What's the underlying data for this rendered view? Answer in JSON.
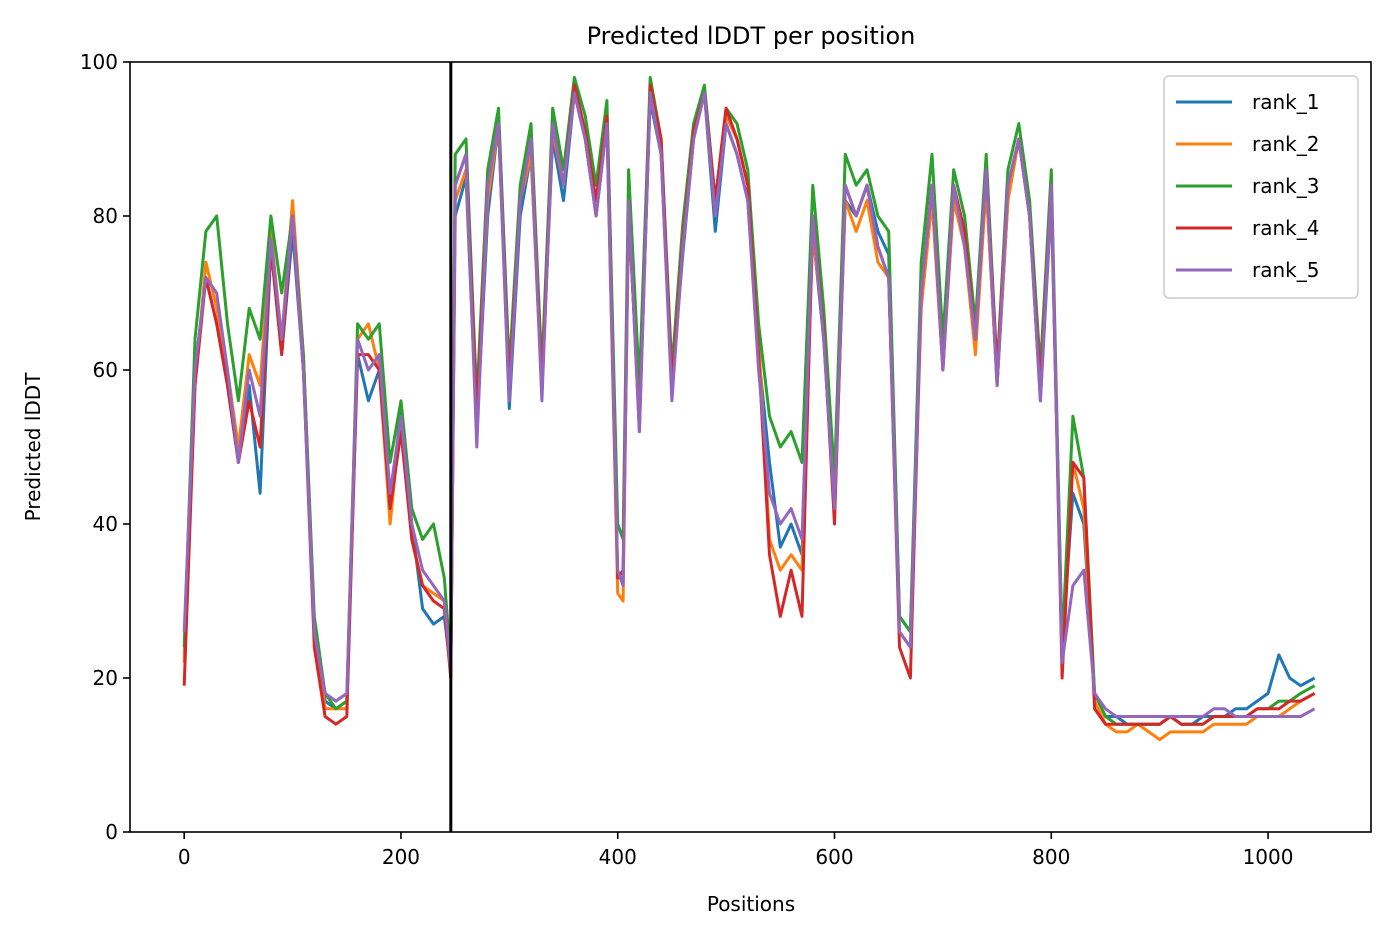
{
  "chart_data": {
    "type": "line",
    "title": "Predicted lDDT per position",
    "xlabel": "Positions",
    "ylabel": "Predicted lDDT",
    "xlim": [
      -50,
      1095
    ],
    "ylim": [
      0,
      100
    ],
    "xticks": [
      0,
      200,
      400,
      600,
      800,
      1000
    ],
    "yticks": [
      0,
      20,
      40,
      60,
      80,
      100
    ],
    "grid": false,
    "legend_position": "top-right",
    "vertical_marker": {
      "x": 246,
      "color": "#000000"
    },
    "x": [
      0,
      10,
      20,
      30,
      40,
      50,
      60,
      70,
      80,
      90,
      100,
      110,
      120,
      130,
      140,
      150,
      160,
      170,
      180,
      190,
      200,
      210,
      220,
      230,
      240,
      246,
      250,
      260,
      270,
      280,
      290,
      300,
      310,
      320,
      330,
      340,
      350,
      360,
      370,
      380,
      390,
      400,
      405,
      410,
      420,
      430,
      440,
      450,
      460,
      470,
      480,
      490,
      500,
      510,
      520,
      530,
      540,
      550,
      560,
      570,
      580,
      590,
      600,
      610,
      620,
      630,
      640,
      650,
      660,
      670,
      680,
      690,
      700,
      710,
      720,
      730,
      740,
      750,
      760,
      770,
      780,
      790,
      800,
      810,
      820,
      830,
      840,
      850,
      860,
      870,
      880,
      890,
      900,
      910,
      920,
      930,
      940,
      950,
      960,
      970,
      980,
      990,
      1000,
      1010,
      1020,
      1030,
      1043
    ],
    "series": [
      {
        "name": "rank_1",
        "color": "#1f77b4",
        "values": [
          23,
          60,
          72,
          66,
          58,
          48,
          58,
          44,
          76,
          62,
          78,
          60,
          27,
          17,
          16,
          17,
          62,
          56,
          60,
          42,
          55,
          40,
          29,
          27,
          28,
          21,
          80,
          85,
          52,
          80,
          92,
          55,
          80,
          88,
          58,
          90,
          82,
          96,
          90,
          80,
          92,
          33,
          33,
          80,
          55,
          95,
          88,
          58,
          75,
          90,
          96,
          78,
          92,
          88,
          82,
          62,
          48,
          37,
          40,
          36,
          78,
          64,
          42,
          82,
          80,
          84,
          78,
          75,
          28,
          26,
          70,
          84,
          62,
          84,
          76,
          64,
          84,
          58,
          82,
          90,
          80,
          56,
          82,
          24,
          44,
          40,
          18,
          15,
          15,
          14,
          14,
          14,
          14,
          15,
          14,
          14,
          15,
          15,
          15,
          16,
          16,
          17,
          18,
          23,
          20,
          19,
          20
        ]
      },
      {
        "name": "rank_2",
        "color": "#ff7f0e",
        "values": [
          22,
          58,
          74,
          68,
          60,
          50,
          62,
          58,
          78,
          64,
          82,
          62,
          26,
          16,
          16,
          16,
          64,
          66,
          60,
          40,
          54,
          38,
          32,
          31,
          30,
          20,
          82,
          86,
          54,
          82,
          92,
          57,
          82,
          88,
          57,
          91,
          84,
          96,
          90,
          80,
          92,
          31,
          30,
          81,
          54,
          96,
          88,
          58,
          76,
          90,
          96,
          80,
          93,
          90,
          84,
          64,
          38,
          34,
          36,
          34,
          78,
          65,
          44,
          82,
          78,
          82,
          74,
          72,
          26,
          24,
          68,
          82,
          60,
          82,
          76,
          62,
          84,
          58,
          82,
          90,
          80,
          58,
          83,
          23,
          48,
          42,
          17,
          14,
          13,
          13,
          14,
          13,
          12,
          13,
          13,
          13,
          13,
          14,
          14,
          14,
          14,
          15,
          15,
          15,
          16,
          17,
          18
        ]
      },
      {
        "name": "rank_3",
        "color": "#2ca02c",
        "values": [
          24,
          64,
          78,
          80,
          66,
          56,
          68,
          64,
          80,
          70,
          80,
          62,
          28,
          18,
          16,
          17,
          66,
          64,
          66,
          48,
          56,
          42,
          38,
          40,
          33,
          22,
          88,
          90,
          56,
          86,
          94,
          60,
          84,
          92,
          60,
          94,
          86,
          98,
          93,
          84,
          95,
          40,
          38,
          86,
          58,
          98,
          90,
          60,
          79,
          92,
          97,
          82,
          94,
          92,
          86,
          66,
          54,
          50,
          52,
          48,
          84,
          68,
          46,
          88,
          84,
          86,
          80,
          78,
          28,
          26,
          74,
          88,
          64,
          86,
          80,
          66,
          88,
          60,
          86,
          92,
          82,
          60,
          86,
          24,
          54,
          46,
          18,
          15,
          14,
          14,
          14,
          14,
          14,
          15,
          14,
          14,
          14,
          15,
          15,
          15,
          15,
          16,
          16,
          17,
          17,
          18,
          19
        ]
      },
      {
        "name": "rank_4",
        "color": "#d62728",
        "values": [
          19,
          58,
          72,
          66,
          58,
          48,
          56,
          50,
          76,
          62,
          80,
          60,
          24,
          15,
          14,
          15,
          62,
          62,
          60,
          42,
          52,
          38,
          32,
          30,
          29,
          20,
          84,
          88,
          54,
          84,
          92,
          58,
          82,
          90,
          58,
          92,
          84,
          97,
          91,
          82,
          93,
          33,
          34,
          82,
          52,
          97,
          90,
          58,
          77,
          91,
          96,
          82,
          94,
          90,
          84,
          62,
          36,
          28,
          34,
          28,
          80,
          65,
          40,
          84,
          80,
          84,
          76,
          72,
          24,
          20,
          70,
          84,
          60,
          84,
          78,
          64,
          86,
          60,
          84,
          90,
          80,
          58,
          84,
          20,
          48,
          46,
          16,
          14,
          14,
          14,
          14,
          14,
          14,
          15,
          14,
          14,
          14,
          15,
          15,
          15,
          15,
          16,
          16,
          16,
          17,
          17,
          18
        ]
      },
      {
        "name": "rank_5",
        "color": "#9467bd",
        "values": [
          26,
          60,
          72,
          70,
          60,
          48,
          60,
          54,
          77,
          64,
          80,
          60,
          26,
          18,
          17,
          18,
          64,
          60,
          62,
          44,
          54,
          40,
          34,
          32,
          30,
          21,
          84,
          88,
          50,
          84,
          92,
          56,
          82,
          90,
          56,
          92,
          84,
          96,
          90,
          80,
          92,
          34,
          32,
          82,
          52,
          96,
          88,
          56,
          76,
          90,
          96,
          80,
          92,
          88,
          82,
          60,
          44,
          40,
          42,
          38,
          80,
          64,
          42,
          84,
          80,
          84,
          76,
          72,
          26,
          24,
          70,
          84,
          60,
          84,
          76,
          64,
          86,
          58,
          84,
          90,
          80,
          56,
          84,
          22,
          32,
          34,
          18,
          16,
          15,
          15,
          15,
          15,
          15,
          15,
          15,
          15,
          15,
          16,
          16,
          15,
          15,
          15,
          15,
          15,
          15,
          15,
          16
        ]
      }
    ]
  }
}
